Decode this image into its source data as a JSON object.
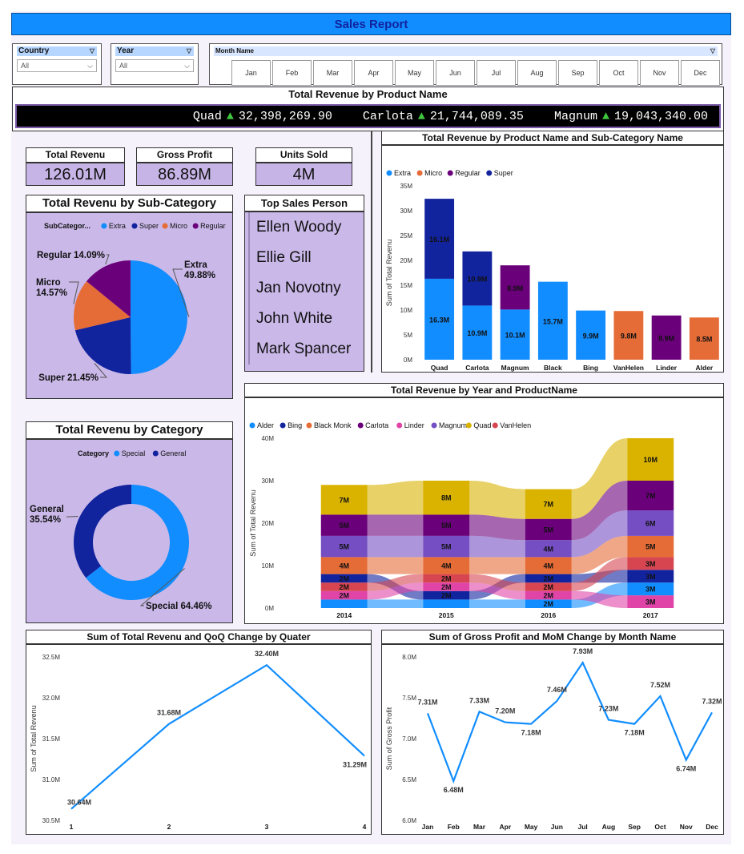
{
  "header": {
    "title": "Sales Report"
  },
  "filters": {
    "country": {
      "label": "Country",
      "value": "All"
    },
    "year": {
      "label": "Year",
      "value": "All"
    },
    "month": {
      "label": "Month Name",
      "options": [
        "Jan",
        "Feb",
        "Mar",
        "Apr",
        "May",
        "Jun",
        "Jul",
        "Aug",
        "Sep",
        "Oct",
        "Nov",
        "Dec"
      ]
    }
  },
  "ticker": {
    "title": "Total Revenue by Product Name",
    "items": [
      {
        "name": "Quad",
        "arrow": "▲",
        "value": "32,398,269.90"
      },
      {
        "name": "Carlota",
        "arrow": "▲",
        "value": "21,744,089.35"
      },
      {
        "name": "Magnum",
        "arrow": "▲",
        "value": "19,043,340.00"
      }
    ]
  },
  "kpis": [
    {
      "label": "Total Revenu",
      "value": "126.01M"
    },
    {
      "label": "Gross Profit",
      "value": "86.89M"
    },
    {
      "label": "Units Sold",
      "value": "4M"
    }
  ],
  "top_sales": {
    "title": "Top Sales Person",
    "people": [
      "Ellen Woody",
      "Ellie Gill",
      "Jan Novotny",
      "John White",
      "Mark Spancer"
    ]
  },
  "colors": {
    "extra": "#118dff",
    "micro": "#e66c37",
    "regular": "#6b007b",
    "super": "#12239e",
    "special": "#118dff",
    "general": "#12239e",
    "alder": "#118dff",
    "bing": "#12239e",
    "blackmonk": "#e66c37",
    "carlota": "#6b007b",
    "linder": "#e044a7",
    "magnum": "#744ec2",
    "quad": "#d9b300",
    "vanhelen": "#d64550"
  },
  "chart_data": [
    {
      "id": "subcat_pie",
      "type": "pie",
      "title": "Total Revenu by Sub-Category",
      "legend_title": "SubCategor...",
      "legend": [
        "Extra",
        "Super",
        "Micro",
        "Regular"
      ],
      "slices": [
        {
          "name": "Extra",
          "pct": 49.88,
          "label": "Extra\n49.88%"
        },
        {
          "name": "Super",
          "pct": 21.45,
          "label": "Super 21.45%"
        },
        {
          "name": "Micro",
          "pct": 14.57,
          "label": "Micro\n14.57%"
        },
        {
          "name": "Regular",
          "pct": 14.09,
          "label": "Regular 14.09%"
        }
      ]
    },
    {
      "id": "cat_donut",
      "type": "pie",
      "title": "Total Revenu by Category",
      "legend_title": "Category",
      "legend": [
        "Special",
        "General"
      ],
      "slices": [
        {
          "name": "Special",
          "pct": 64.46,
          "label": "Special 64.46%"
        },
        {
          "name": "General",
          "pct": 35.54,
          "label": "General\n35.54%"
        }
      ]
    },
    {
      "id": "product_stack",
      "type": "bar",
      "title": "Total Revenue by Product Name and Sub-Category Name",
      "legend": [
        "Extra",
        "Micro",
        "Regular",
        "Super"
      ],
      "ylabel": "Sum of Total Revenu",
      "ylim": [
        0,
        35
      ],
      "yticks": [
        "0M",
        "5M",
        "10M",
        "15M",
        "20M",
        "25M",
        "30M",
        "35M"
      ],
      "categories": [
        "Quad",
        "Carlota",
        "Magnum",
        "Black Monk",
        "Bing",
        "VanHelen",
        "Linder",
        "Alder"
      ],
      "bars": [
        {
          "segments": [
            {
              "sub": "Extra",
              "value": 16.3,
              "label": "16.3M"
            },
            {
              "sub": "Super",
              "value": 16.1,
              "label": "16.1M"
            }
          ]
        },
        {
          "segments": [
            {
              "sub": "Extra",
              "value": 10.9,
              "label": "10.9M"
            },
            {
              "sub": "Super",
              "value": 10.9,
              "label": "10.9M"
            }
          ]
        },
        {
          "segments": [
            {
              "sub": "Extra",
              "value": 10.1,
              "label": "10.1M"
            },
            {
              "sub": "Regular",
              "value": 8.9,
              "label": "8.9M"
            }
          ]
        },
        {
          "segments": [
            {
              "sub": "Extra",
              "value": 15.7,
              "label": "15.7M"
            }
          ]
        },
        {
          "segments": [
            {
              "sub": "Extra",
              "value": 9.9,
              "label": "9.9M"
            }
          ]
        },
        {
          "segments": [
            {
              "sub": "Micro",
              "value": 9.8,
              "label": "9.8M"
            }
          ]
        },
        {
          "segments": [
            {
              "sub": "Regular",
              "value": 8.9,
              "label": "8.9M"
            }
          ]
        },
        {
          "segments": [
            {
              "sub": "Micro",
              "value": 8.5,
              "label": "8.5M"
            }
          ]
        }
      ]
    },
    {
      "id": "year_ribbon",
      "type": "bar",
      "title": "Total Revenue by Year and ProductName",
      "legend": [
        "Alder",
        "Bing",
        "Black Monk",
        "Carlota",
        "Linder",
        "Magnum",
        "Quad",
        "VanHelen"
      ],
      "ylabel": "Sum of Total Revenu",
      "ylim": [
        0,
        40
      ],
      "yticks": [
        "0M",
        "10M",
        "20M",
        "30M",
        "40M"
      ],
      "categories": [
        "2014",
        "2015",
        "2016",
        "2017"
      ],
      "stacks": [
        [
          {
            "p": "Alder",
            "v": 2,
            "label": ""
          },
          {
            "p": "Linder",
            "v": 2,
            "label": "2M"
          },
          {
            "p": "VanHelen",
            "v": 2,
            "label": "2M"
          },
          {
            "p": "Bing",
            "v": 2,
            "label": "2M"
          },
          {
            "p": "Black Monk",
            "v": 4,
            "label": "4M"
          },
          {
            "p": "Magnum",
            "v": 5,
            "label": "5M"
          },
          {
            "p": "Carlota",
            "v": 5,
            "label": "5M"
          },
          {
            "p": "Quad",
            "v": 7,
            "label": "7M"
          }
        ],
        [
          {
            "p": "Alder",
            "v": 2,
            "label": ""
          },
          {
            "p": "Bing",
            "v": 2,
            "label": "2M"
          },
          {
            "p": "Linder",
            "v": 2,
            "label": "2M"
          },
          {
            "p": "VanHelen",
            "v": 2,
            "label": "2M"
          },
          {
            "p": "Black Monk",
            "v": 4,
            "label": "4M"
          },
          {
            "p": "Magnum",
            "v": 5,
            "label": "5M"
          },
          {
            "p": "Carlota",
            "v": 5,
            "label": "5M"
          },
          {
            "p": "Quad",
            "v": 8,
            "label": "8M"
          }
        ],
        [
          {
            "p": "Alder",
            "v": 2,
            "label": "2M"
          },
          {
            "p": "Linder",
            "v": 2,
            "label": "2M"
          },
          {
            "p": "VanHelen",
            "v": 2,
            "label": "2M"
          },
          {
            "p": "Bing",
            "v": 2,
            "label": "2M"
          },
          {
            "p": "Black Monk",
            "v": 4,
            "label": "4M"
          },
          {
            "p": "Magnum",
            "v": 4,
            "label": "4M"
          },
          {
            "p": "Carlota",
            "v": 5,
            "label": "5M"
          },
          {
            "p": "Quad",
            "v": 7,
            "label": "7M"
          }
        ],
        [
          {
            "p": "Linder",
            "v": 3,
            "label": "3M"
          },
          {
            "p": "Alder",
            "v": 3,
            "label": "3M"
          },
          {
            "p": "Bing",
            "v": 3,
            "label": "3M"
          },
          {
            "p": "VanHelen",
            "v": 3,
            "label": "3M"
          },
          {
            "p": "Black Monk",
            "v": 5,
            "label": "5M"
          },
          {
            "p": "Magnum",
            "v": 6,
            "label": "6M"
          },
          {
            "p": "Carlota",
            "v": 7,
            "label": "7M"
          },
          {
            "p": "Quad",
            "v": 10,
            "label": "10M"
          }
        ]
      ]
    },
    {
      "id": "qoq_line",
      "type": "line",
      "title": "Sum of Total Revenu and QoQ Change by Quater",
      "ylabel": "Sum of Total Revenu",
      "ylim": [
        30.5,
        32.5
      ],
      "yticks": [
        "30.5M",
        "31.0M",
        "31.5M",
        "32.0M",
        "32.5M"
      ],
      "x": [
        "1",
        "2",
        "3",
        "4"
      ],
      "values": [
        30.64,
        31.68,
        32.4,
        31.29
      ],
      "labels": [
        "30.64M",
        "31.68M",
        "32.40M",
        "31.29M"
      ]
    },
    {
      "id": "mom_line",
      "type": "line",
      "title": "Sum of Gross Profit and MoM Change by Month Name",
      "ylabel": "Sum of Gross Profit",
      "ylim": [
        6.0,
        8.0
      ],
      "yticks": [
        "6.0M",
        "6.5M",
        "7.0M",
        "7.5M",
        "8.0M"
      ],
      "x": [
        "Jan",
        "Feb",
        "Mar",
        "Apr",
        "May",
        "Jun",
        "Jul",
        "Aug",
        "Sep",
        "Oct",
        "Nov",
        "Dec"
      ],
      "values": [
        7.31,
        6.48,
        7.33,
        7.2,
        7.18,
        7.46,
        7.93,
        7.23,
        7.18,
        7.52,
        6.74,
        7.32
      ],
      "labels": [
        "7.31M",
        "6.48M",
        "7.33M",
        "7.20M",
        "7.18M",
        "7.46M",
        "7.93M",
        "7.23M",
        "7.18M",
        "7.52M",
        "6.74M",
        "7.32M"
      ]
    }
  ]
}
